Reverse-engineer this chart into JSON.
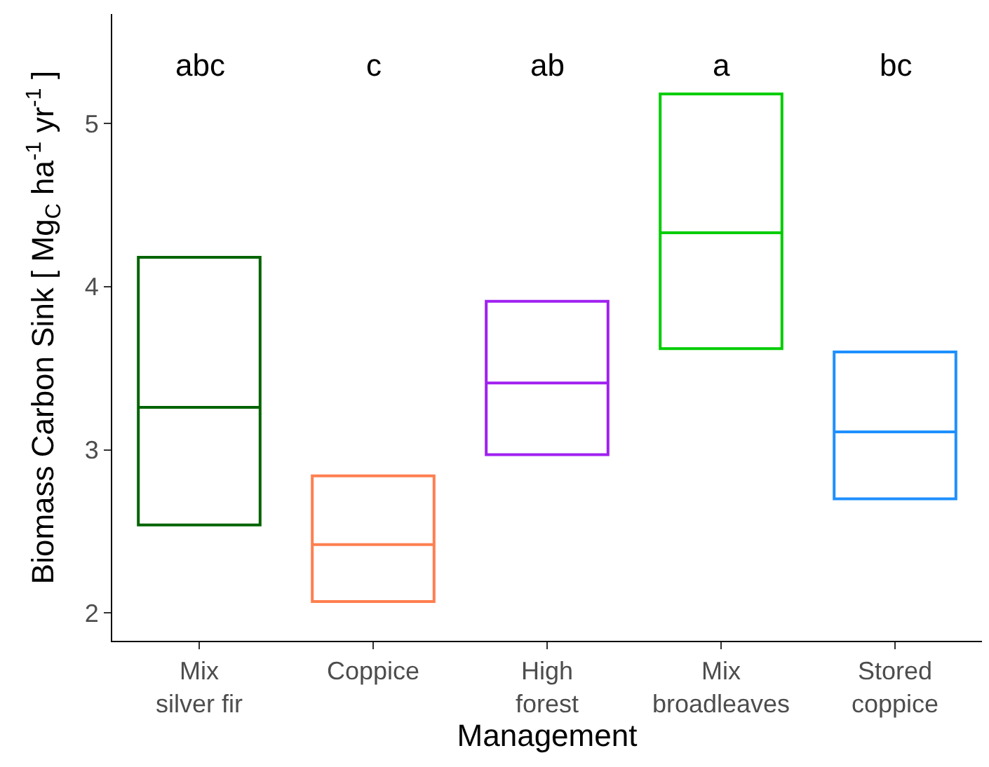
{
  "chart_data": {
    "type": "box",
    "xlabel": "Management",
    "ylabel": "Biomass Carbon Sink [ Mg$_{C}$ ha$^{-1}$ yr$^{-1}$ ]",
    "categories": [
      "Mix\nsilver fir",
      "Coppice",
      "High\nforest",
      "Mix\nbroadleaves",
      "Stored\ncoppice"
    ],
    "colors": [
      "#006400",
      "#ff7f50",
      "#a020f0",
      "#00cd00",
      "#1e90ff"
    ],
    "boxes": [
      {
        "low": 2.54,
        "q1": 2.54,
        "median": 3.26,
        "q3": 4.18,
        "high": 4.18
      },
      {
        "low": 2.07,
        "q1": 2.07,
        "median": 2.42,
        "q3": 2.84,
        "high": 2.84
      },
      {
        "low": 2.97,
        "q1": 2.97,
        "median": 3.41,
        "q3": 3.91,
        "high": 3.91
      },
      {
        "low": 3.62,
        "q1": 3.62,
        "median": 4.33,
        "q3": 5.18,
        "high": 5.18
      },
      {
        "low": 2.7,
        "q1": 2.7,
        "median": 3.11,
        "q3": 3.6,
        "high": 3.6
      }
    ],
    "annotations": [
      "abc",
      "c",
      "ab",
      "a",
      "bc"
    ],
    "ylim": [
      1.83,
      5.67
    ],
    "yticks": [
      2,
      3,
      4,
      5
    ],
    "legend": false
  }
}
